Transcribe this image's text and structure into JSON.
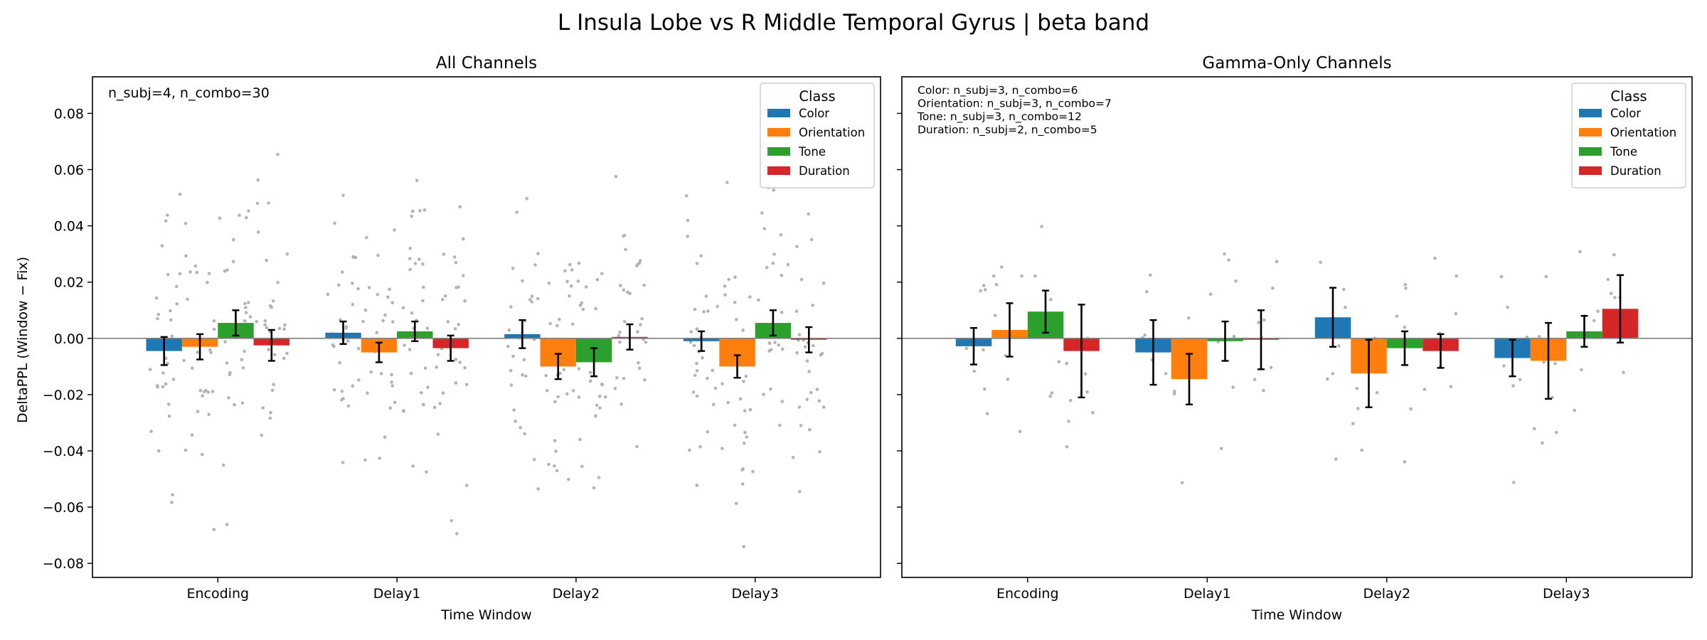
{
  "figure": {
    "suptitle": "L Insula Lobe vs R Middle Temporal Gyrus  |  beta band",
    "ylabel": "DeltaPPL (Window − Fix)",
    "xlabel": "Time Window"
  },
  "colors": {
    "Color": "#1f77b4",
    "Orientation": "#ff7f0e",
    "Tone": "#2ca02c",
    "Duration": "#d62728",
    "points": "#b3b3b3",
    "zero_line": "#808080"
  },
  "chart_data": [
    {
      "type": "bar",
      "title": "All Channels",
      "xlabel": "Time Window",
      "ylabel": "DeltaPPL (Window − Fix)",
      "categories": [
        "Encoding",
        "Delay1",
        "Delay2",
        "Delay3"
      ],
      "ylim": [
        -0.085,
        0.093
      ],
      "yticks": [
        -0.08,
        -0.06,
        -0.04,
        -0.02,
        0.0,
        0.02,
        0.04,
        0.06,
        0.08
      ],
      "ytick_labels": [
        "−0.08",
        "−0.06",
        "−0.04",
        "−0.02",
        "0.00",
        "0.02",
        "0.04",
        "0.06",
        "0.08"
      ],
      "legend": {
        "title": "Class",
        "position": "top-right"
      },
      "annotation": [
        "n_subj=4, n_combo=30"
      ],
      "series": [
        {
          "name": "Color",
          "values": [
            -0.0045,
            0.002,
            0.0015,
            -0.001
          ],
          "errors": [
            0.005,
            0.004,
            0.005,
            0.0035
          ]
        },
        {
          "name": "Orientation",
          "values": [
            -0.003,
            -0.005,
            -0.01,
            -0.01
          ],
          "errors": [
            0.0045,
            0.0035,
            0.0045,
            0.004
          ]
        },
        {
          "name": "Tone",
          "values": [
            0.0055,
            0.0025,
            -0.0085,
            0.0055
          ],
          "errors": [
            0.0045,
            0.0035,
            0.005,
            0.0045
          ]
        },
        {
          "name": "Duration",
          "values": [
            -0.0025,
            -0.0035,
            0.0005,
            -0.0005
          ],
          "errors": [
            0.0055,
            0.0045,
            0.0045,
            0.0045
          ]
        }
      ]
    },
    {
      "type": "bar",
      "title": "Gamma-Only Channels",
      "xlabel": "Time Window",
      "categories": [
        "Encoding",
        "Delay1",
        "Delay2",
        "Delay3"
      ],
      "ylim": [
        -0.085,
        0.093
      ],
      "yticks": [
        -0.08,
        -0.06,
        -0.04,
        -0.02,
        0.0,
        0.02,
        0.04,
        0.06,
        0.08
      ],
      "legend": {
        "title": "Class",
        "position": "top-right"
      },
      "annotation": [
        "Color: n_subj=3, n_combo=6",
        "Orientation: n_subj=3, n_combo=7",
        "Tone: n_subj=3, n_combo=12",
        "Duration: n_subj=2, n_combo=5"
      ],
      "series": [
        {
          "name": "Color",
          "values": [
            -0.0028,
            -0.005,
            0.0075,
            -0.007
          ],
          "errors": [
            0.0065,
            0.0115,
            0.0105,
            0.0065
          ]
        },
        {
          "name": "Orientation",
          "values": [
            0.003,
            -0.0145,
            -0.0125,
            -0.008
          ],
          "errors": [
            0.0095,
            0.009,
            0.012,
            0.0135
          ]
        },
        {
          "name": "Tone",
          "values": [
            0.0095,
            -0.001,
            -0.0035,
            0.0025
          ],
          "errors": [
            0.0075,
            0.007,
            0.006,
            0.0055
          ]
        },
        {
          "name": "Duration",
          "values": [
            -0.0045,
            -0.0005,
            -0.0045,
            0.0105
          ],
          "errors": [
            0.0165,
            0.0105,
            0.006,
            0.012
          ]
        }
      ]
    }
  ]
}
